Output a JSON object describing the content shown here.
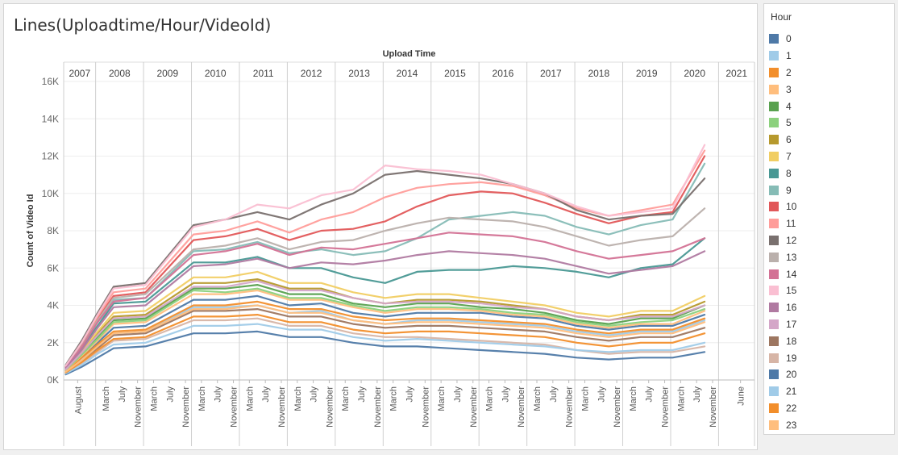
{
  "title": "Lines(Uploadtime/Hour/VideoId)",
  "chart_data": {
    "type": "line",
    "title": "Lines(Uploadtime/Hour/VideoId)",
    "xlabel": "Upload Time",
    "ylabel": "Count of Video Id",
    "ylim": [
      0,
      16000
    ],
    "yticks": [
      0,
      2000,
      4000,
      6000,
      8000,
      10000,
      12000,
      14000,
      16000
    ],
    "ytick_labels": [
      "0K",
      "2K",
      "4K",
      "6K",
      "8K",
      "10K",
      "12K",
      "14K",
      "16K"
    ],
    "years": [
      "2007",
      "2008",
      "2009",
      "2010",
      "2011",
      "2012",
      "2013",
      "2014",
      "2015",
      "2016",
      "2017",
      "2018",
      "2019",
      "2020",
      "2021"
    ],
    "month_labels": [
      {
        "year": "2007",
        "labels": [
          [
            "August",
            8
          ]
        ]
      },
      {
        "year": "2008",
        "labels": [
          [
            "March",
            3
          ],
          [
            "July",
            7
          ],
          [
            "November",
            11
          ]
        ]
      },
      {
        "year": "2009",
        "labels": [
          [
            "March",
            3
          ],
          [
            "July",
            7
          ],
          [
            "November",
            11
          ]
        ]
      },
      {
        "year": "2010",
        "labels": [
          [
            "March",
            3
          ],
          [
            "July",
            7
          ],
          [
            "November",
            11
          ]
        ]
      },
      {
        "year": "2011",
        "labels": [
          [
            "March",
            3
          ],
          [
            "July",
            7
          ],
          [
            "November",
            11
          ]
        ]
      },
      {
        "year": "2012",
        "labels": [
          [
            "March",
            3
          ],
          [
            "July",
            7
          ],
          [
            "November",
            11
          ]
        ]
      },
      {
        "year": "2013",
        "labels": [
          [
            "March",
            3
          ],
          [
            "July",
            7
          ],
          [
            "November",
            11
          ]
        ]
      },
      {
        "year": "2014",
        "labels": [
          [
            "March",
            3
          ],
          [
            "July",
            7
          ],
          [
            "November",
            11
          ]
        ]
      },
      {
        "year": "2015",
        "labels": [
          [
            "March",
            3
          ],
          [
            "July",
            7
          ],
          [
            "November",
            11
          ]
        ]
      },
      {
        "year": "2016",
        "labels": [
          [
            "March",
            3
          ],
          [
            "July",
            7
          ],
          [
            "November",
            11
          ]
        ]
      },
      {
        "year": "2017",
        "labels": [
          [
            "March",
            3
          ],
          [
            "July",
            7
          ],
          [
            "November",
            11
          ]
        ]
      },
      {
        "year": "2018",
        "labels": [
          [
            "March",
            3
          ],
          [
            "July",
            7
          ],
          [
            "November",
            11
          ]
        ]
      },
      {
        "year": "2019",
        "labels": [
          [
            "March",
            3
          ],
          [
            "July",
            7
          ],
          [
            "November",
            11
          ]
        ]
      },
      {
        "year": "2020",
        "labels": [
          [
            "March",
            3
          ],
          [
            "July",
            7
          ],
          [
            "November",
            11
          ]
        ]
      },
      {
        "year": "2021",
        "labels": [
          [
            "June",
            6
          ]
        ]
      }
    ],
    "x_start": "2007-05",
    "x_end": "2021-09",
    "grid": true,
    "legend": {
      "title": "Hour",
      "position": "right"
    },
    "series": [
      {
        "name": "0",
        "color": "#4e79a7",
        "values": [
          500,
          1200,
          2000,
          2800,
          2900,
          4300,
          4300,
          4500,
          4000,
          4100,
          3600,
          3400,
          3600,
          3600,
          3600,
          3400,
          3300,
          2900,
          2700,
          2900,
          2900,
          3500
        ]
      },
      {
        "name": "1",
        "color": "#a0cbe8",
        "values": [
          450,
          1100,
          1800,
          2500,
          2600,
          3900,
          3900,
          4000,
          3600,
          3700,
          3200,
          3000,
          3200,
          3200,
          3100,
          3000,
          2900,
          2600,
          2400,
          2600,
          2600,
          3200
        ]
      },
      {
        "name": "2",
        "color": "#f28e2b",
        "values": [
          480,
          1200,
          1900,
          2600,
          2700,
          4000,
          4000,
          4200,
          3800,
          3800,
          3400,
          3200,
          3300,
          3300,
          3200,
          3100,
          3000,
          2700,
          2500,
          2700,
          2700,
          3300
        ]
      },
      {
        "name": "3",
        "color": "#ffbe7d",
        "values": [
          520,
          1300,
          2100,
          3000,
          3100,
          4600,
          4600,
          4800,
          4300,
          4300,
          3900,
          3600,
          3800,
          3800,
          3700,
          3500,
          3400,
          3000,
          2800,
          3000,
          3000,
          3700
        ]
      },
      {
        "name": "4",
        "color": "#59a14f",
        "values": [
          550,
          1400,
          2300,
          3200,
          3300,
          4900,
          4900,
          5100,
          4600,
          4600,
          4100,
          3900,
          4100,
          4100,
          3900,
          3800,
          3600,
          3200,
          3000,
          3300,
          3300,
          4000
        ]
      },
      {
        "name": "5",
        "color": "#8cd17d",
        "values": [
          530,
          1350,
          2200,
          3100,
          3200,
          4800,
          4700,
          4900,
          4400,
          4400,
          4000,
          3700,
          3900,
          3900,
          3800,
          3600,
          3500,
          3100,
          2900,
          3100,
          3200,
          3800
        ]
      },
      {
        "name": "6",
        "color": "#b6992d",
        "values": [
          580,
          1500,
          2500,
          3400,
          3500,
          5200,
          5200,
          5400,
          4900,
          4900,
          4400,
          4100,
          4300,
          4300,
          4200,
          4000,
          3800,
          3400,
          3200,
          3500,
          3500,
          4200
        ]
      },
      {
        "name": "7",
        "color": "#f1ce63",
        "values": [
          600,
          1550,
          2600,
          3600,
          3700,
          5500,
          5500,
          5800,
          5200,
          5200,
          4700,
          4400,
          4600,
          4600,
          4400,
          4200,
          4000,
          3600,
          3400,
          3700,
          3700,
          4500
        ]
      },
      {
        "name": "8",
        "color": "#499894",
        "values": [
          650,
          1700,
          2900,
          4100,
          4200,
          6300,
          6300,
          6600,
          6000,
          6000,
          5500,
          5200,
          5800,
          5900,
          5900,
          6100,
          6000,
          5800,
          5500,
          6000,
          6200,
          7600
        ]
      },
      {
        "name": "9",
        "color": "#86bcb6",
        "values": [
          700,
          1800,
          3100,
          4300,
          4400,
          6900,
          7000,
          7400,
          6800,
          7000,
          6700,
          6900,
          7600,
          8600,
          8800,
          9000,
          8800,
          8200,
          7800,
          8300,
          8600,
          11600
        ]
      },
      {
        "name": "10",
        "color": "#e15759",
        "values": [
          720,
          1900,
          3300,
          4500,
          4700,
          7500,
          7700,
          8100,
          7500,
          8000,
          8100,
          8500,
          9300,
          9900,
          10100,
          10000,
          9500,
          8900,
          8400,
          8800,
          9000,
          12000
        ]
      },
      {
        "name": "11",
        "color": "#ff9d9a",
        "values": [
          740,
          2000,
          3400,
          4700,
          4900,
          7800,
          8000,
          8500,
          7900,
          8600,
          9000,
          9800,
          10300,
          10500,
          10600,
          10400,
          9900,
          9200,
          8800,
          9100,
          9400,
          12300
        ]
      },
      {
        "name": "12",
        "color": "#79706e",
        "values": [
          800,
          2100,
          3600,
          5000,
          5200,
          8300,
          8600,
          9000,
          8600,
          9400,
          10000,
          11000,
          11200,
          11000,
          10800,
          10500,
          10000,
          9100,
          8600,
          8800,
          8900,
          10800
        ]
      },
      {
        "name": "13",
        "color": "#bab0ac",
        "values": [
          700,
          1800,
          3200,
          4400,
          4600,
          7000,
          7200,
          7600,
          7000,
          7400,
          7500,
          8000,
          8400,
          8700,
          8600,
          8500,
          8200,
          7700,
          7200,
          7500,
          7700,
          9200
        ]
      },
      {
        "name": "14",
        "color": "#d37295",
        "values": [
          680,
          1750,
          3100,
          4200,
          4400,
          6700,
          6900,
          7300,
          6700,
          7100,
          7000,
          7300,
          7600,
          7900,
          7800,
          7700,
          7400,
          6900,
          6500,
          6700,
          6900,
          7600
        ]
      },
      {
        "name": "15",
        "color": "#fabfd2",
        "values": [
          760,
          2000,
          3500,
          4900,
          5100,
          8200,
          8600,
          9400,
          9200,
          9900,
          10200,
          11500,
          11300,
          11200,
          11000,
          10500,
          10000,
          9300,
          8800,
          9000,
          9200,
          12600
        ]
      },
      {
        "name": "16",
        "color": "#b07aa1",
        "values": [
          620,
          1600,
          2800,
          3900,
          4000,
          6100,
          6200,
          6500,
          6000,
          6300,
          6200,
          6400,
          6700,
          6900,
          6800,
          6700,
          6500,
          6100,
          5700,
          5900,
          6100,
          6900
        ]
      },
      {
        "name": "17",
        "color": "#d4a6c8",
        "values": [
          560,
          1450,
          2400,
          3300,
          3400,
          5000,
          5000,
          5300,
          4800,
          4800,
          4400,
          4100,
          4200,
          4200,
          4100,
          3900,
          3800,
          3400,
          3200,
          3400,
          3400,
          4000
        ]
      },
      {
        "name": "18",
        "color": "#9d7660",
        "values": [
          420,
          1000,
          1700,
          2400,
          2500,
          3700,
          3700,
          3800,
          3400,
          3400,
          3000,
          2800,
          2900,
          2900,
          2800,
          2700,
          2600,
          2300,
          2100,
          2300,
          2300,
          2800
        ]
      },
      {
        "name": "19",
        "color": "#d7b5a6",
        "values": [
          380,
          900,
          1500,
          2100,
          2200,
          3200,
          3200,
          3300,
          2900,
          2900,
          2500,
          2300,
          2300,
          2200,
          2100,
          2000,
          1900,
          1600,
          1400,
          1500,
          1500,
          1800
        ]
      },
      {
        "name": "20",
        "color": "#4e79a7",
        "values": [
          300,
          700,
          1200,
          1700,
          1800,
          2500,
          2500,
          2600,
          2300,
          2300,
          2000,
          1800,
          1800,
          1700,
          1600,
          1500,
          1400,
          1200,
          1100,
          1200,
          1200,
          1500
        ]
      },
      {
        "name": "21",
        "color": "#a0cbe8",
        "values": [
          350,
          800,
          1400,
          1900,
          2000,
          2900,
          2900,
          3000,
          2700,
          2700,
          2300,
          2100,
          2200,
          2100,
          2000,
          1900,
          1800,
          1600,
          1500,
          1600,
          1600,
          2000
        ]
      },
      {
        "name": "22",
        "color": "#f28e2b",
        "values": [
          400,
          950,
          1600,
          2200,
          2300,
          3400,
          3400,
          3500,
          3100,
          3100,
          2700,
          2500,
          2600,
          2600,
          2500,
          2400,
          2300,
          2000,
          1800,
          2000,
          2000,
          2500
        ]
      },
      {
        "name": "23",
        "color": "#ffbe7d",
        "values": [
          440,
          1050,
          1800,
          2500,
          2600,
          3800,
          3800,
          4000,
          3600,
          3600,
          3200,
          3000,
          3100,
          3100,
          3000,
          2900,
          2800,
          2500,
          2300,
          2500,
          2500,
          3100
        ]
      }
    ],
    "x": [
      "2007-05",
      "2007-09",
      "2008-01",
      "2008-05",
      "2009-01",
      "2010-01",
      "2010-09",
      "2011-05",
      "2012-01",
      "2012-09",
      "2013-05",
      "2014-01",
      "2014-09",
      "2015-05",
      "2016-01",
      "2016-09",
      "2017-05",
      "2018-01",
      "2018-09",
      "2019-05",
      "2020-01",
      "2020-09"
    ]
  }
}
